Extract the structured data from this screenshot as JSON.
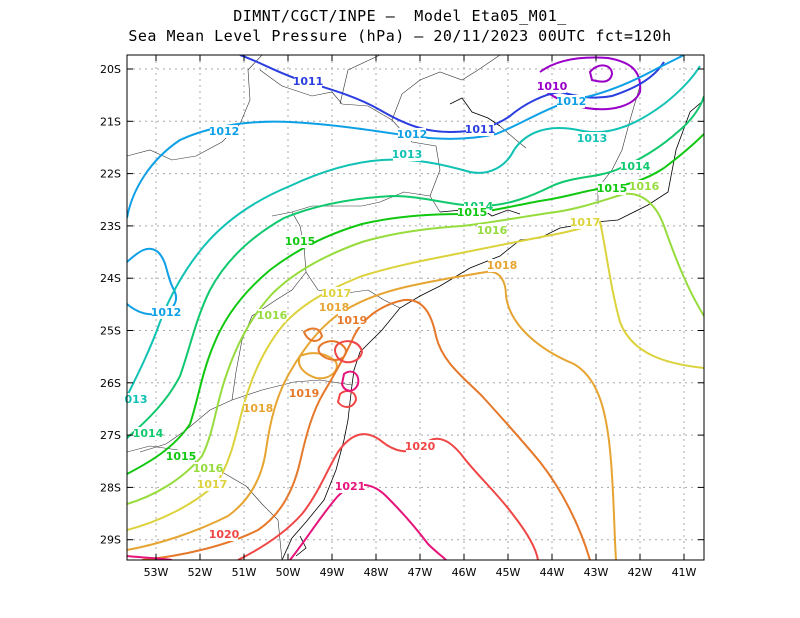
{
  "header": {
    "line1": "DIMNT/CGCT/INPE –  Model Eta05_M01_",
    "line2": "Sea Mean Level Pressure (hPa) – 20/11/2023 00UTC fct=120h"
  },
  "axes": {
    "lon_labels": [
      "53W",
      "52W",
      "51W",
      "50W",
      "49W",
      "48W",
      "47W",
      "46W",
      "45W",
      "44W",
      "43W",
      "42W",
      "41W"
    ],
    "lat_labels": [
      "20S",
      "21S",
      "22S",
      "23S",
      "24S",
      "25S",
      "26S",
      "27S",
      "28S",
      "29S"
    ]
  },
  "colors": {
    "c1010": "#9b00c8",
    "c1011": "#2b3ee0",
    "c1012": "#0ea0e6",
    "c1013": "#10c2b4",
    "c1014": "#10c86e",
    "c1015": "#10c810",
    "c1016": "#96dc3c",
    "c1017": "#dcd23c",
    "c1018": "#e6a532",
    "c1019": "#e6782a",
    "c1020": "#f04646",
    "c1021": "#e6147a"
  },
  "contour_labels": [
    {
      "text": "1010",
      "color": "c1010"
    },
    {
      "text": "1011",
      "color": "c1011"
    },
    {
      "text": "1011",
      "color": "c1011"
    },
    {
      "text": "1012",
      "color": "c1012"
    },
    {
      "text": "1012",
      "color": "c1012"
    },
    {
      "text": "1012",
      "color": "c1012"
    },
    {
      "text": "1012",
      "color": "c1012"
    },
    {
      "text": "1013",
      "color": "c1013"
    },
    {
      "text": "1013",
      "color": "c1013"
    },
    {
      "text": "013",
      "color": "c1013"
    },
    {
      "text": "1014",
      "color": "c1014"
    },
    {
      "text": "1014",
      "color": "c1014"
    },
    {
      "text": "1014",
      "color": "c1014"
    },
    {
      "text": "1015",
      "color": "c1015"
    },
    {
      "text": "1015",
      "color": "c1015"
    },
    {
      "text": "1015",
      "color": "c1015"
    },
    {
      "text": "1015",
      "color": "c1015"
    },
    {
      "text": "1016",
      "color": "c1016"
    },
    {
      "text": "1016",
      "color": "c1016"
    },
    {
      "text": "1016",
      "color": "c1016"
    },
    {
      "text": "1016",
      "color": "c1016"
    },
    {
      "text": "1017",
      "color": "c1017"
    },
    {
      "text": "1017",
      "color": "c1017"
    },
    {
      "text": "1017",
      "color": "c1017"
    },
    {
      "text": "1018",
      "color": "c1018"
    },
    {
      "text": "1018",
      "color": "c1018"
    },
    {
      "text": "1018",
      "color": "c1018"
    },
    {
      "text": "1019",
      "color": "c1019"
    },
    {
      "text": "1019",
      "color": "c1019"
    },
    {
      "text": "1020",
      "color": "c1020"
    },
    {
      "text": "1020",
      "color": "c1020"
    },
    {
      "text": "1021",
      "color": "c1021"
    }
  ]
}
